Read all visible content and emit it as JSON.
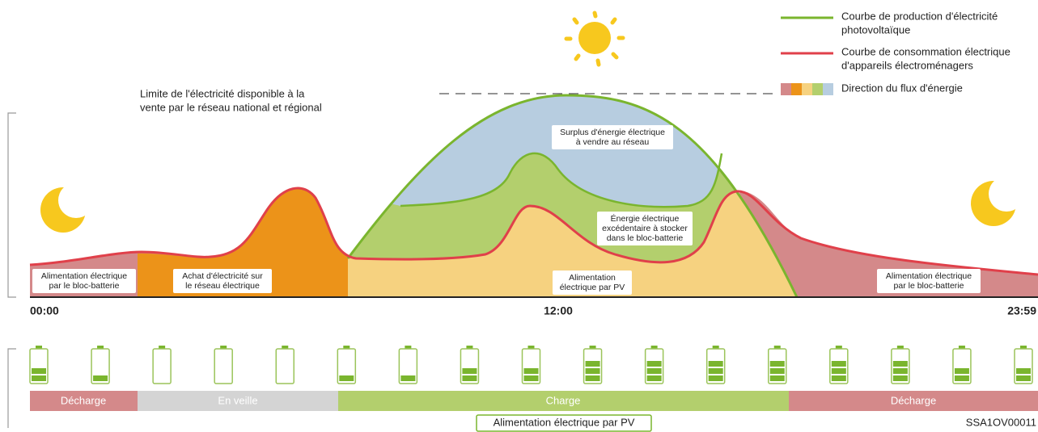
{
  "legend": [
    {
      "lines": [
        "Courbe de production d'électricité",
        "photovoltaïque"
      ]
    },
    {
      "lines": [
        "Courbe de consommation électrique",
        "d'appareils électroménagers"
      ]
    },
    {
      "lines": [
        "Direction du flux d'énergie"
      ]
    }
  ],
  "limit_label": [
    "Limite de l'électricité disponible à la",
    "vente par le réseau national et régional"
  ],
  "region_labels": [
    {
      "lines": [
        "Alimentation électrique",
        "par le bloc-batterie"
      ]
    },
    {
      "lines": [
        "Achat d'électricité sur",
        "le réseau électrique"
      ]
    },
    {
      "lines": [
        "Alimentation",
        "électrique par PV"
      ]
    },
    {
      "lines": [
        "Surplus d'énergie électrique",
        "à vendre au réseau"
      ]
    },
    {
      "lines": [
        "Énergie électrique",
        "excédentaire à stocker",
        "dans le bloc-batterie"
      ]
    },
    {
      "lines": [
        "Alimentation électrique",
        "par le bloc-batterie"
      ]
    }
  ],
  "times": [
    "00:00",
    "12:00",
    "23:59"
  ],
  "battery_levels": [
    2,
    1,
    0,
    0,
    0,
    1,
    1,
    2,
    2,
    3,
    3,
    3,
    3,
    3,
    3,
    2,
    2
  ],
  "states": [
    "Décharge",
    "En veille",
    "Charge",
    "Décharge"
  ],
  "footer_label": "Alimentation électrique par PV",
  "figure_id": "SSA1OV00011"
}
